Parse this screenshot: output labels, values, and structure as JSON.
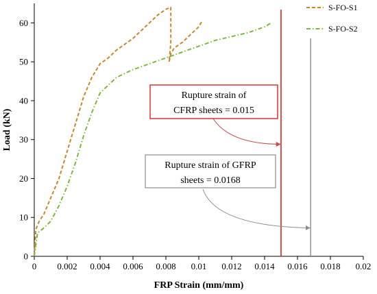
{
  "chart_data": {
    "type": "line",
    "title": "",
    "xlabel": "FRP Strain (mm/mm)",
    "ylabel": "Load (kN)",
    "xlim": [
      0,
      0.02
    ],
    "ylim": [
      0,
      65
    ],
    "x_ticks": [
      0,
      0.002,
      0.004,
      0.006,
      0.008,
      0.01,
      0.012,
      0.014,
      0.016,
      0.018,
      0.02
    ],
    "x_tick_labels": [
      "0",
      "0.002",
      "0.004",
      "0.006",
      "0.008",
      "0.01",
      "0.012",
      "0.014",
      "0.016",
      "0.018",
      "0.02"
    ],
    "y_ticks": [
      0,
      10,
      20,
      30,
      40,
      50,
      60
    ],
    "y_tick_labels": [
      "0",
      "10",
      "20",
      "30",
      "40",
      "50",
      "60"
    ],
    "grid": false,
    "legend_position": "top-right",
    "series": [
      {
        "name": "S-FO-S1",
        "style": "dashed",
        "color": "#C8882A",
        "x": [
          0,
          0.0001,
          0.0003,
          0.0006,
          0.001,
          0.0015,
          0.002,
          0.0025,
          0.003,
          0.0035,
          0.004,
          0.0045,
          0.005,
          0.0055,
          0.006,
          0.0065,
          0.007,
          0.0075,
          0.008,
          0.0083,
          0.0083,
          0.0082,
          0.0083,
          0.0085,
          0.009,
          0.0095,
          0.01,
          0.0102
        ],
        "y": [
          0,
          7,
          9,
          11,
          15,
          20,
          27,
          34,
          41,
          46,
          49.5,
          51,
          53,
          54.5,
          56,
          58,
          60,
          62,
          63.5,
          64,
          55,
          50,
          52,
          53.5,
          55,
          57,
          59,
          60.5
        ]
      },
      {
        "name": "S-FO-S2",
        "style": "dash-dot",
        "color": "#7DB83A",
        "x": [
          0,
          0.0002,
          0.0005,
          0.001,
          0.0015,
          0.002,
          0.0025,
          0.003,
          0.0035,
          0.004,
          0.005,
          0.006,
          0.007,
          0.008,
          0.009,
          0.01,
          0.011,
          0.012,
          0.013,
          0.014,
          0.0144
        ],
        "y": [
          0,
          6,
          7,
          9,
          13,
          18,
          24,
          31,
          37,
          42,
          46,
          48,
          49.5,
          51,
          52.5,
          54,
          55.5,
          56.5,
          57.5,
          59,
          60
        ]
      }
    ],
    "vertical_lines": [
      {
        "x": 0.015,
        "color": "#E02020"
      },
      {
        "x": 0.0168,
        "color": "#8C8C8C"
      }
    ],
    "annotations": [
      {
        "lines": [
          "Rupture strain of",
          "CFRP sheets = 0.015"
        ],
        "border": "#E02020",
        "arrow_color": "#C0504D",
        "target": [
          0.015,
          28.8
        ]
      },
      {
        "lines": [
          "Rupture strain of GFRP",
          "sheets = 0.0168"
        ],
        "border": "#8C8C8C",
        "arrow_color": "#8C8C8C",
        "target": [
          0.0168,
          7.3
        ]
      }
    ]
  }
}
